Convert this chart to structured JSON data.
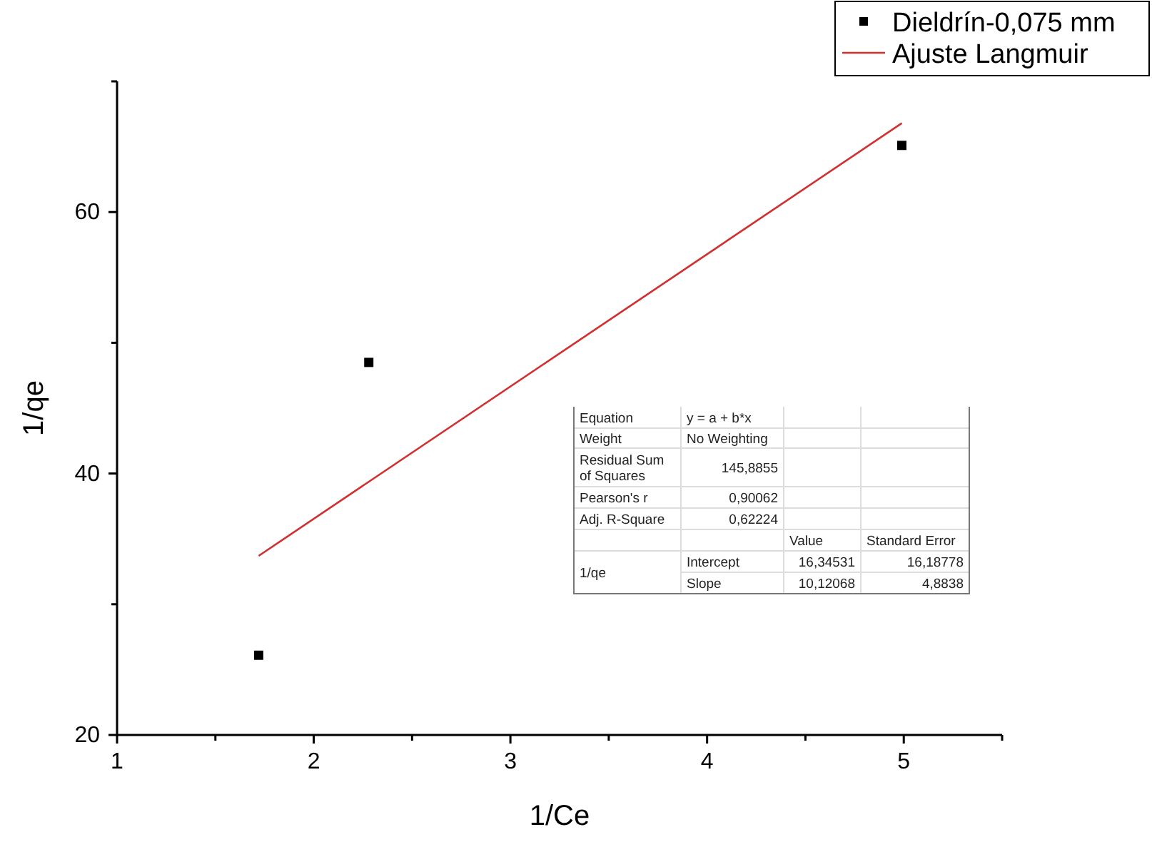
{
  "chart_data": {
    "type": "scatter",
    "xlabel": "1/Ce",
    "ylabel": "1/qe",
    "xlim": [
      1,
      5.5
    ],
    "ylim": [
      20,
      70
    ],
    "xticks": [
      1,
      {
        "value": 1.5,
        "label": null
      },
      2,
      {
        "value": 2.5,
        "label": null
      },
      3,
      {
        "value": 3.5,
        "label": null
      },
      4,
      {
        "value": 4.5,
        "label": null
      },
      5,
      {
        "value": 5.5,
        "label": null
      }
    ],
    "yticks": [
      20,
      {
        "value": 30,
        "label": null
      },
      40,
      {
        "value": 50,
        "label": null
      },
      60,
      {
        "value": 70,
        "label": null
      }
    ],
    "grid": false,
    "legend": "top right",
    "series": [
      {
        "name": "Dieldrín-0,075 mm",
        "marker": "square",
        "color": "#000000",
        "x": [
          1.72,
          2.28,
          4.99
        ],
        "values": [
          26.1,
          48.5,
          65.1
        ]
      },
      {
        "name": "Ajuste Langmuir",
        "type": "line",
        "color": "#d03030",
        "x": [
          1.72,
          4.99
        ],
        "values": [
          33.7,
          66.8
        ]
      }
    ],
    "annotations": [
      "Equation",
      "y = a + b*x",
      "Weight",
      "No Weighting",
      "Residual Sum of Squares",
      "145,8855",
      "Pearson's r",
      "0,90062",
      "Adj. R-Square",
      "0,62224",
      "Value",
      "Standard Error",
      "1/qe",
      "Intercept",
      "16,34531",
      "16,18778",
      "Slope",
      "10,12068",
      "4,8838"
    ]
  }
}
